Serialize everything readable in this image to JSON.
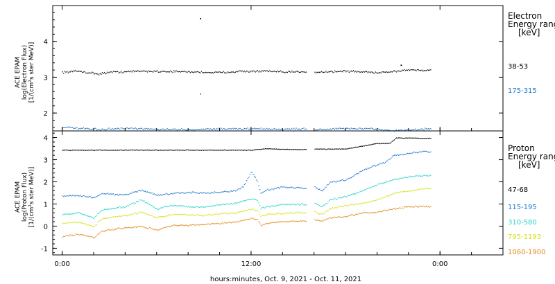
{
  "chart_data": [
    {
      "type": "scatter",
      "panel": "electron",
      "ylabel_lines": [
        "ACE EPAM",
        "log(Electron Flux)",
        "[1/(cm²s ster MeV)]"
      ],
      "yticks": [
        "2",
        "3",
        "4"
      ],
      "ylim": [
        1.5,
        5.0
      ],
      "legend_title": [
        "Electron",
        "Energy ranges",
        "[keV]"
      ],
      "series": [
        {
          "name": "38-53",
          "color": "#000000",
          "base": [
            [
              0.0,
              3.15
            ],
            [
              1.0,
              3.18
            ],
            [
              2.3,
              3.1
            ],
            [
              3.0,
              3.15
            ],
            [
              5.0,
              3.18
            ],
            [
              7.0,
              3.17
            ],
            [
              9.0,
              3.15
            ],
            [
              10.0,
              3.14
            ],
            [
              11.0,
              3.17
            ],
            [
              13.0,
              3.18
            ],
            [
              14.0,
              3.15
            ],
            [
              15.5,
              3.17
            ],
            [
              16.0,
              3.15
            ],
            [
              18.0,
              3.18
            ],
            [
              20.0,
              3.14
            ],
            [
              21.0,
              3.17
            ],
            [
              22.0,
              3.22
            ],
            [
              23.0,
              3.2
            ],
            [
              23.5,
              3.22
            ]
          ],
          "noise": 0.04,
          "outliers": [
            [
              8.75,
              4.65
            ],
            [
              21.5,
              3.35
            ]
          ]
        },
        {
          "name": "175-315",
          "color": "#1f77d0",
          "base": [
            [
              0.0,
              1.62
            ],
            [
              1.0,
              1.58
            ],
            [
              2.3,
              1.55
            ],
            [
              4.0,
              1.58
            ],
            [
              6.0,
              1.56
            ],
            [
              8.0,
              1.55
            ],
            [
              10.0,
              1.57
            ],
            [
              12.0,
              1.57
            ],
            [
              14.0,
              1.56
            ],
            [
              15.5,
              1.57
            ],
            [
              16.0,
              1.55
            ],
            [
              18.0,
              1.58
            ],
            [
              20.0,
              1.56
            ],
            [
              21.0,
              1.52
            ],
            [
              23.0,
              1.56
            ],
            [
              23.5,
              1.58
            ]
          ],
          "noise": 0.035,
          "outliers": [
            [
              8.75,
              2.55
            ]
          ]
        }
      ]
    },
    {
      "type": "scatter",
      "panel": "proton",
      "ylabel_lines": [
        "ACE EPAM",
        "log(Proton Flux)",
        "[1/(cm²s ster MeV)]"
      ],
      "yticks": [
        "-1",
        "0",
        "1",
        "2",
        "3",
        "4"
      ],
      "ylim": [
        -1.3,
        4.3
      ],
      "legend_title": [
        "Proton",
        "Energy ranges",
        "[keV]"
      ],
      "series": [
        {
          "name": "47-68",
          "color": "#000000",
          "base": [
            [
              0.0,
              3.45
            ],
            [
              4.0,
              3.45
            ],
            [
              8.0,
              3.45
            ],
            [
              12.0,
              3.45
            ],
            [
              13.0,
              3.52
            ],
            [
              14.0,
              3.48
            ],
            [
              15.5,
              3.48
            ],
            [
              16.0,
              3.5
            ],
            [
              18.0,
              3.5
            ],
            [
              19.2,
              3.65
            ],
            [
              20.0,
              3.75
            ],
            [
              20.8,
              3.75
            ],
            [
              21.2,
              4.0
            ],
            [
              22.5,
              4.0
            ],
            [
              23.0,
              3.98
            ],
            [
              23.5,
              4.0
            ]
          ],
          "noise": 0.02,
          "outliers": []
        },
        {
          "name": "115-195",
          "color": "#1f77d0",
          "base": [
            [
              0.0,
              1.38
            ],
            [
              1.0,
              1.4
            ],
            [
              2.0,
              1.3
            ],
            [
              2.5,
              1.48
            ],
            [
              4.0,
              1.42
            ],
            [
              5.0,
              1.65
            ],
            [
              6.0,
              1.42
            ],
            [
              7.0,
              1.48
            ],
            [
              8.0,
              1.55
            ],
            [
              9.0,
              1.5
            ],
            [
              10.0,
              1.55
            ],
            [
              11.0,
              1.62
            ],
            [
              11.5,
              1.8
            ],
            [
              12.0,
              2.5
            ],
            [
              12.4,
              2.0
            ],
            [
              12.6,
              1.5
            ],
            [
              13.0,
              1.65
            ],
            [
              14.0,
              1.78
            ],
            [
              15.0,
              1.75
            ],
            [
              15.5,
              1.7
            ],
            [
              16.0,
              1.8
            ],
            [
              16.5,
              1.6
            ],
            [
              17.0,
              2.0
            ],
            [
              18.0,
              2.1
            ],
            [
              19.0,
              2.5
            ],
            [
              20.0,
              2.8
            ],
            [
              20.5,
              2.9
            ],
            [
              21.0,
              3.2
            ],
            [
              22.0,
              3.3
            ],
            [
              23.0,
              3.4
            ],
            [
              23.5,
              3.35
            ]
          ],
          "noise": 0.05,
          "outliers": []
        },
        {
          "name": "310-580",
          "color": "#27d3c9",
          "base": [
            [
              0.0,
              0.55
            ],
            [
              1.0,
              0.62
            ],
            [
              2.0,
              0.38
            ],
            [
              2.5,
              0.75
            ],
            [
              4.0,
              0.9
            ],
            [
              5.0,
              1.2
            ],
            [
              6.0,
              0.8
            ],
            [
              7.0,
              0.95
            ],
            [
              8.0,
              0.9
            ],
            [
              9.0,
              0.88
            ],
            [
              10.0,
              0.98
            ],
            [
              11.0,
              1.05
            ],
            [
              12.0,
              1.25
            ],
            [
              12.4,
              1.2
            ],
            [
              12.6,
              0.8
            ],
            [
              13.0,
              0.9
            ],
            [
              14.0,
              1.0
            ],
            [
              15.5,
              1.0
            ],
            [
              16.0,
              1.05
            ],
            [
              16.5,
              0.9
            ],
            [
              17.0,
              1.2
            ],
            [
              18.0,
              1.35
            ],
            [
              19.0,
              1.6
            ],
            [
              20.0,
              1.9
            ],
            [
              21.0,
              2.1
            ],
            [
              22.0,
              2.25
            ],
            [
              23.0,
              2.3
            ],
            [
              23.5,
              2.3
            ]
          ],
          "noise": 0.05,
          "outliers": []
        },
        {
          "name": "795-1193",
          "color": "#d4e21a",
          "base": [
            [
              0.0,
              0.15
            ],
            [
              1.0,
              0.2
            ],
            [
              2.0,
              0.0
            ],
            [
              2.5,
              0.35
            ],
            [
              4.0,
              0.5
            ],
            [
              5.0,
              0.65
            ],
            [
              6.0,
              0.4
            ],
            [
              7.0,
              0.55
            ],
            [
              8.0,
              0.52
            ],
            [
              9.0,
              0.5
            ],
            [
              10.0,
              0.58
            ],
            [
              11.0,
              0.62
            ],
            [
              12.0,
              0.78
            ],
            [
              12.4,
              0.72
            ],
            [
              12.6,
              0.45
            ],
            [
              13.0,
              0.55
            ],
            [
              14.0,
              0.6
            ],
            [
              15.5,
              0.62
            ],
            [
              16.0,
              0.65
            ],
            [
              16.5,
              0.55
            ],
            [
              17.0,
              0.8
            ],
            [
              18.0,
              0.95
            ],
            [
              19.0,
              1.05
            ],
            [
              20.0,
              1.2
            ],
            [
              21.0,
              1.5
            ],
            [
              22.0,
              1.6
            ],
            [
              23.0,
              1.72
            ],
            [
              23.5,
              1.72
            ]
          ],
          "noise": 0.05,
          "outliers": []
        },
        {
          "name": "1060-1900",
          "color": "#e38a1c",
          "base": [
            [
              0.0,
              -0.45
            ],
            [
              1.0,
              -0.35
            ],
            [
              2.0,
              -0.5
            ],
            [
              2.5,
              -0.2
            ],
            [
              4.0,
              -0.05
            ],
            [
              5.0,
              0.0
            ],
            [
              6.0,
              -0.15
            ],
            [
              7.0,
              0.05
            ],
            [
              8.0,
              0.05
            ],
            [
              9.0,
              0.1
            ],
            [
              10.0,
              0.15
            ],
            [
              11.0,
              0.2
            ],
            [
              12.0,
              0.38
            ],
            [
              12.4,
              0.3
            ],
            [
              12.6,
              0.05
            ],
            [
              13.0,
              0.15
            ],
            [
              14.0,
              0.22
            ],
            [
              15.5,
              0.25
            ],
            [
              16.0,
              0.3
            ],
            [
              16.5,
              0.25
            ],
            [
              17.0,
              0.4
            ],
            [
              18.0,
              0.45
            ],
            [
              19.0,
              0.6
            ],
            [
              20.0,
              0.65
            ],
            [
              21.0,
              0.8
            ],
            [
              22.0,
              0.9
            ],
            [
              23.0,
              0.9
            ],
            [
              23.5,
              0.88
            ]
          ],
          "noise": 0.05,
          "outliers": []
        }
      ]
    }
  ],
  "xaxis": {
    "ticks": [
      {
        "hour": 0,
        "label": "0:00"
      },
      {
        "hour": 12,
        "label": "12:00"
      },
      {
        "hour": 24,
        "label": "0:00"
      }
    ],
    "xlim": [
      -0.6,
      28.0
    ],
    "data_gaps": [
      [
        15.5,
        16.0
      ]
    ],
    "xlabel": "hours:minutes, Oct.  9, 2021 - Oct. 11, 2021"
  }
}
